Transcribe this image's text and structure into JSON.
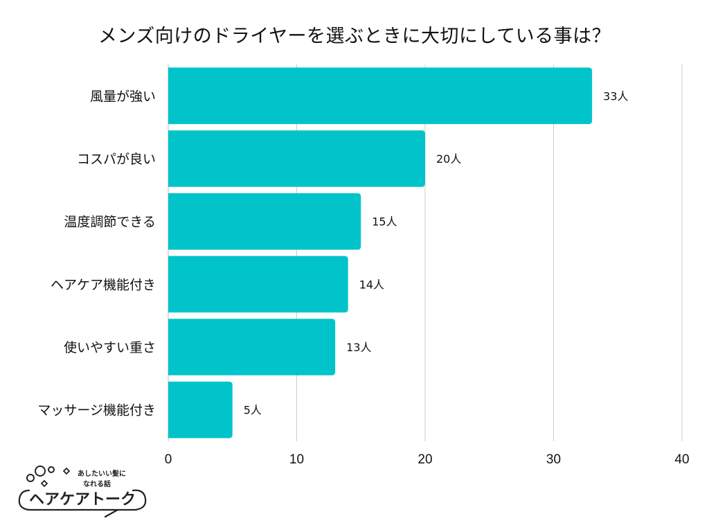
{
  "chart_data": {
    "type": "bar",
    "orientation": "horizontal",
    "title": "メンズ向けのドライヤーを選ぶときに大切にしている事は？",
    "categories": [
      "風量が強い",
      "コスパが良い",
      "温度調節できる",
      "ヘアケア機能付き",
      "使いやすい重さ",
      "マッサージ機能付き"
    ],
    "values": [
      33,
      20,
      15,
      14,
      13,
      5
    ],
    "value_labels": [
      "33人",
      "20人",
      "15人",
      "14人",
      "13人",
      "5人"
    ],
    "xlim": [
      0,
      40
    ],
    "xticks": [
      0,
      10,
      20,
      30,
      40
    ],
    "xtick_labels": [
      "0",
      "10",
      "20",
      "30",
      "40"
    ],
    "grid": true,
    "bar_color": "#00C4C9",
    "grid_color": "#cccccc"
  },
  "logo": {
    "top_line1": "あしたいい髪に",
    "top_line2": "なれる話",
    "main": "ヘアケアトーク"
  }
}
